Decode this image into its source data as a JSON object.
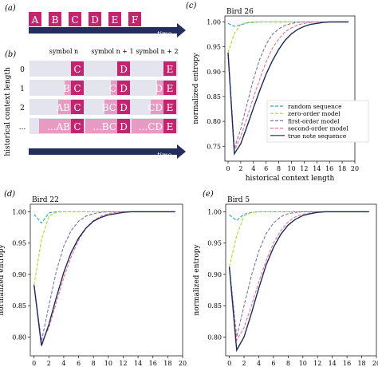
{
  "panels": {
    "a": {
      "label": "(a)",
      "symbols": [
        "A",
        "B",
        "C",
        "D",
        "E",
        "F"
      ],
      "time_label": "time"
    },
    "b": {
      "label": "(b)",
      "column_headers": [
        "symbol n",
        "symbol n + 1",
        "symbol n + 2"
      ],
      "ylabel": "historical context length",
      "row_labels": [
        "0",
        "1",
        "2",
        "..."
      ],
      "cells": [
        [
          {
            "ctx": "",
            "sym": "C"
          },
          {
            "ctx": "",
            "sym": "D"
          },
          {
            "ctx": "",
            "sym": "E"
          }
        ],
        [
          {
            "ctx": "B",
            "sym": "C"
          },
          {
            "ctx": "C",
            "sym": "D"
          },
          {
            "ctx": "D",
            "sym": "E"
          }
        ],
        [
          {
            "ctx": "AB",
            "sym": "C"
          },
          {
            "ctx": "BC",
            "sym": "D"
          },
          {
            "ctx": "CD",
            "sym": "E"
          }
        ],
        [
          {
            "ctx": "...AB",
            "sym": "C"
          },
          {
            "ctx": "...BC",
            "sym": "D"
          },
          {
            "ctx": "...CD",
            "sym": "E"
          }
        ]
      ],
      "time_label": "time"
    }
  },
  "colors": {
    "symbol_box": "#c2246f",
    "context_box": "#e79ac2",
    "row_band": "#e3e4ee",
    "time_arrow": "#232d5e",
    "random": "#2aa0c6",
    "zero": "#bcd22a",
    "first": "#7e6fae",
    "second": "#e8718d",
    "true": "#1e2a5a"
  },
  "chart_data": [
    {
      "panel_label": "(c)",
      "title": "Bird 26",
      "type": "line",
      "xlabel": "historical context length",
      "ylabel": "normalized entropy",
      "xlim": [
        -0.5,
        20
      ],
      "ylim": [
        0.72,
        1.012
      ],
      "xticks": [
        0,
        2,
        4,
        6,
        8,
        10,
        12,
        14,
        16,
        18,
        20
      ],
      "yticks": [
        0.75,
        0.8,
        0.85,
        0.9,
        0.95,
        1.0
      ],
      "legend": "center-right",
      "x": [
        0,
        1,
        2,
        3,
        4,
        5,
        6,
        7,
        8,
        9,
        10,
        11,
        12,
        13,
        14,
        15,
        16,
        17,
        18,
        19
      ],
      "series": [
        {
          "name": "random sequence",
          "color_key": "random",
          "dash": "dashed",
          "values": [
            0.997,
            0.991,
            0.994,
            0.998,
            0.999,
            1.0,
            1.0,
            1.0,
            1.0,
            1.0,
            1.0,
            1.0,
            1.0,
            1.0,
            1.0,
            1.0,
            1.0,
            1.0,
            1.0,
            1.0
          ]
        },
        {
          "name": "zero-order model",
          "color_key": "zero",
          "dash": "dashed",
          "values": [
            0.938,
            0.977,
            0.995,
            0.999,
            1.0,
            1.0,
            1.0,
            1.0,
            1.0,
            1.0,
            1.0,
            1.0,
            1.0,
            1.0,
            1.0,
            1.0,
            1.0,
            1.0,
            1.0,
            1.0
          ]
        },
        {
          "name": "first-order model",
          "color_key": "first",
          "dash": "dashed",
          "values": [
            0.938,
            0.746,
            0.785,
            0.835,
            0.885,
            0.925,
            0.955,
            0.975,
            0.986,
            0.993,
            0.997,
            0.999,
            1.0,
            1.0,
            1.0,
            1.0,
            1.0,
            1.0,
            1.0,
            1.0
          ]
        },
        {
          "name": "second-order model",
          "color_key": "second",
          "dash": "dashed",
          "values": [
            0.938,
            0.741,
            0.77,
            0.808,
            0.848,
            0.885,
            0.92,
            0.947,
            0.966,
            0.98,
            0.988,
            0.994,
            0.997,
            0.999,
            1.0,
            1.0,
            1.0,
            1.0,
            1.0,
            1.0
          ]
        },
        {
          "name": "true note sequence",
          "color_key": "true",
          "dash": "solid",
          "values": [
            0.938,
            0.735,
            0.755,
            0.79,
            0.827,
            0.862,
            0.895,
            0.922,
            0.945,
            0.963,
            0.976,
            0.985,
            0.991,
            0.995,
            0.997,
            0.999,
            1.0,
            1.0,
            1.0,
            1.0
          ]
        }
      ]
    },
    {
      "panel_label": "(d)",
      "title": "Bird 22",
      "type": "line",
      "xlabel": "historical context length",
      "ylabel": "normalized entropy",
      "xlim": [
        -0.5,
        20
      ],
      "ylim": [
        0.77,
        1.012
      ],
      "xticks": [
        0,
        2,
        4,
        6,
        8,
        10,
        12,
        14,
        16,
        18,
        20
      ],
      "yticks": [
        0.8,
        0.85,
        0.9,
        0.95,
        1.0
      ],
      "x": [
        0,
        1,
        2,
        3,
        4,
        5,
        6,
        7,
        8,
        9,
        10,
        11,
        12,
        13,
        14,
        15,
        16,
        17,
        18,
        19
      ],
      "series": [
        {
          "name": "random sequence",
          "color_key": "random",
          "dash": "dashed",
          "values": [
            0.996,
            0.982,
            0.998,
            1.0,
            1.0,
            1.0,
            1.0,
            1.0,
            1.0,
            1.0,
            1.0,
            1.0,
            1.0,
            1.0,
            1.0,
            1.0,
            1.0,
            1.0,
            1.0,
            1.0
          ]
        },
        {
          "name": "zero-order model",
          "color_key": "zero",
          "dash": "dashed",
          "values": [
            0.883,
            0.955,
            0.993,
            0.999,
            1.0,
            1.0,
            1.0,
            1.0,
            1.0,
            1.0,
            1.0,
            1.0,
            1.0,
            1.0,
            1.0,
            1.0,
            1.0,
            1.0,
            1.0,
            1.0
          ]
        },
        {
          "name": "first-order model",
          "color_key": "first",
          "dash": "dashed",
          "values": [
            0.883,
            0.793,
            0.85,
            0.905,
            0.945,
            0.97,
            0.985,
            0.993,
            0.997,
            0.999,
            1.0,
            1.0,
            1.0,
            1.0,
            1.0,
            1.0,
            1.0,
            1.0,
            1.0,
            1.0
          ]
        },
        {
          "name": "second-order model",
          "color_key": "second",
          "dash": "dashed",
          "values": [
            0.883,
            0.79,
            0.815,
            0.855,
            0.895,
            0.928,
            0.955,
            0.974,
            0.986,
            0.993,
            0.997,
            0.999,
            1.0,
            1.0,
            1.0,
            1.0,
            1.0,
            1.0,
            1.0,
            1.0
          ]
        },
        {
          "name": "true note sequence",
          "color_key": "true",
          "dash": "solid",
          "values": [
            0.883,
            0.786,
            0.82,
            0.863,
            0.903,
            0.935,
            0.958,
            0.974,
            0.985,
            0.991,
            0.995,
            0.997,
            0.999,
            1.0,
            1.0,
            1.0,
            1.0,
            1.0,
            1.0,
            1.0
          ]
        }
      ]
    },
    {
      "panel_label": "(e)",
      "title": "Bird 5",
      "type": "line",
      "xlabel": "historical context length",
      "ylabel": "normalized entropy",
      "xlim": [
        -0.5,
        20
      ],
      "ylim": [
        0.77,
        1.012
      ],
      "xticks": [
        0,
        2,
        4,
        6,
        8,
        10,
        12,
        14,
        16,
        18,
        20
      ],
      "yticks": [
        0.8,
        0.85,
        0.9,
        0.95,
        1.0
      ],
      "x": [
        0,
        1,
        2,
        3,
        4,
        5,
        6,
        7,
        8,
        9,
        10,
        11,
        12,
        13,
        14,
        15,
        16,
        17,
        18,
        19
      ],
      "series": [
        {
          "name": "random sequence",
          "color_key": "random",
          "dash": "dashed",
          "values": [
            0.995,
            0.986,
            0.996,
            0.999,
            1.0,
            1.0,
            1.0,
            1.0,
            1.0,
            1.0,
            1.0,
            1.0,
            1.0,
            1.0,
            1.0,
            1.0,
            1.0,
            1.0,
            1.0,
            1.0
          ]
        },
        {
          "name": "zero-order model",
          "color_key": "zero",
          "dash": "dashed",
          "values": [
            0.912,
            0.962,
            0.993,
            0.999,
            1.0,
            1.0,
            1.0,
            1.0,
            1.0,
            1.0,
            1.0,
            1.0,
            1.0,
            1.0,
            1.0,
            1.0,
            1.0,
            1.0,
            1.0,
            1.0
          ]
        },
        {
          "name": "first-order model",
          "color_key": "first",
          "dash": "dashed",
          "values": [
            0.912,
            0.8,
            0.85,
            0.898,
            0.937,
            0.965,
            0.982,
            0.992,
            0.997,
            0.999,
            1.0,
            1.0,
            1.0,
            1.0,
            1.0,
            1.0,
            1.0,
            1.0,
            1.0,
            1.0
          ]
        },
        {
          "name": "second-order model",
          "color_key": "second",
          "dash": "dashed",
          "values": [
            0.912,
            0.795,
            0.815,
            0.85,
            0.888,
            0.922,
            0.95,
            0.97,
            0.984,
            0.992,
            0.996,
            0.998,
            1.0,
            1.0,
            1.0,
            1.0,
            1.0,
            1.0,
            1.0,
            1.0
          ]
        },
        {
          "name": "true note sequence",
          "color_key": "true",
          "dash": "solid",
          "values": [
            0.912,
            0.779,
            0.8,
            0.838,
            0.878,
            0.915,
            0.943,
            0.964,
            0.979,
            0.988,
            0.994,
            0.997,
            0.999,
            1.0,
            1.0,
            1.0,
            1.0,
            1.0,
            1.0,
            1.0
          ]
        }
      ]
    }
  ]
}
